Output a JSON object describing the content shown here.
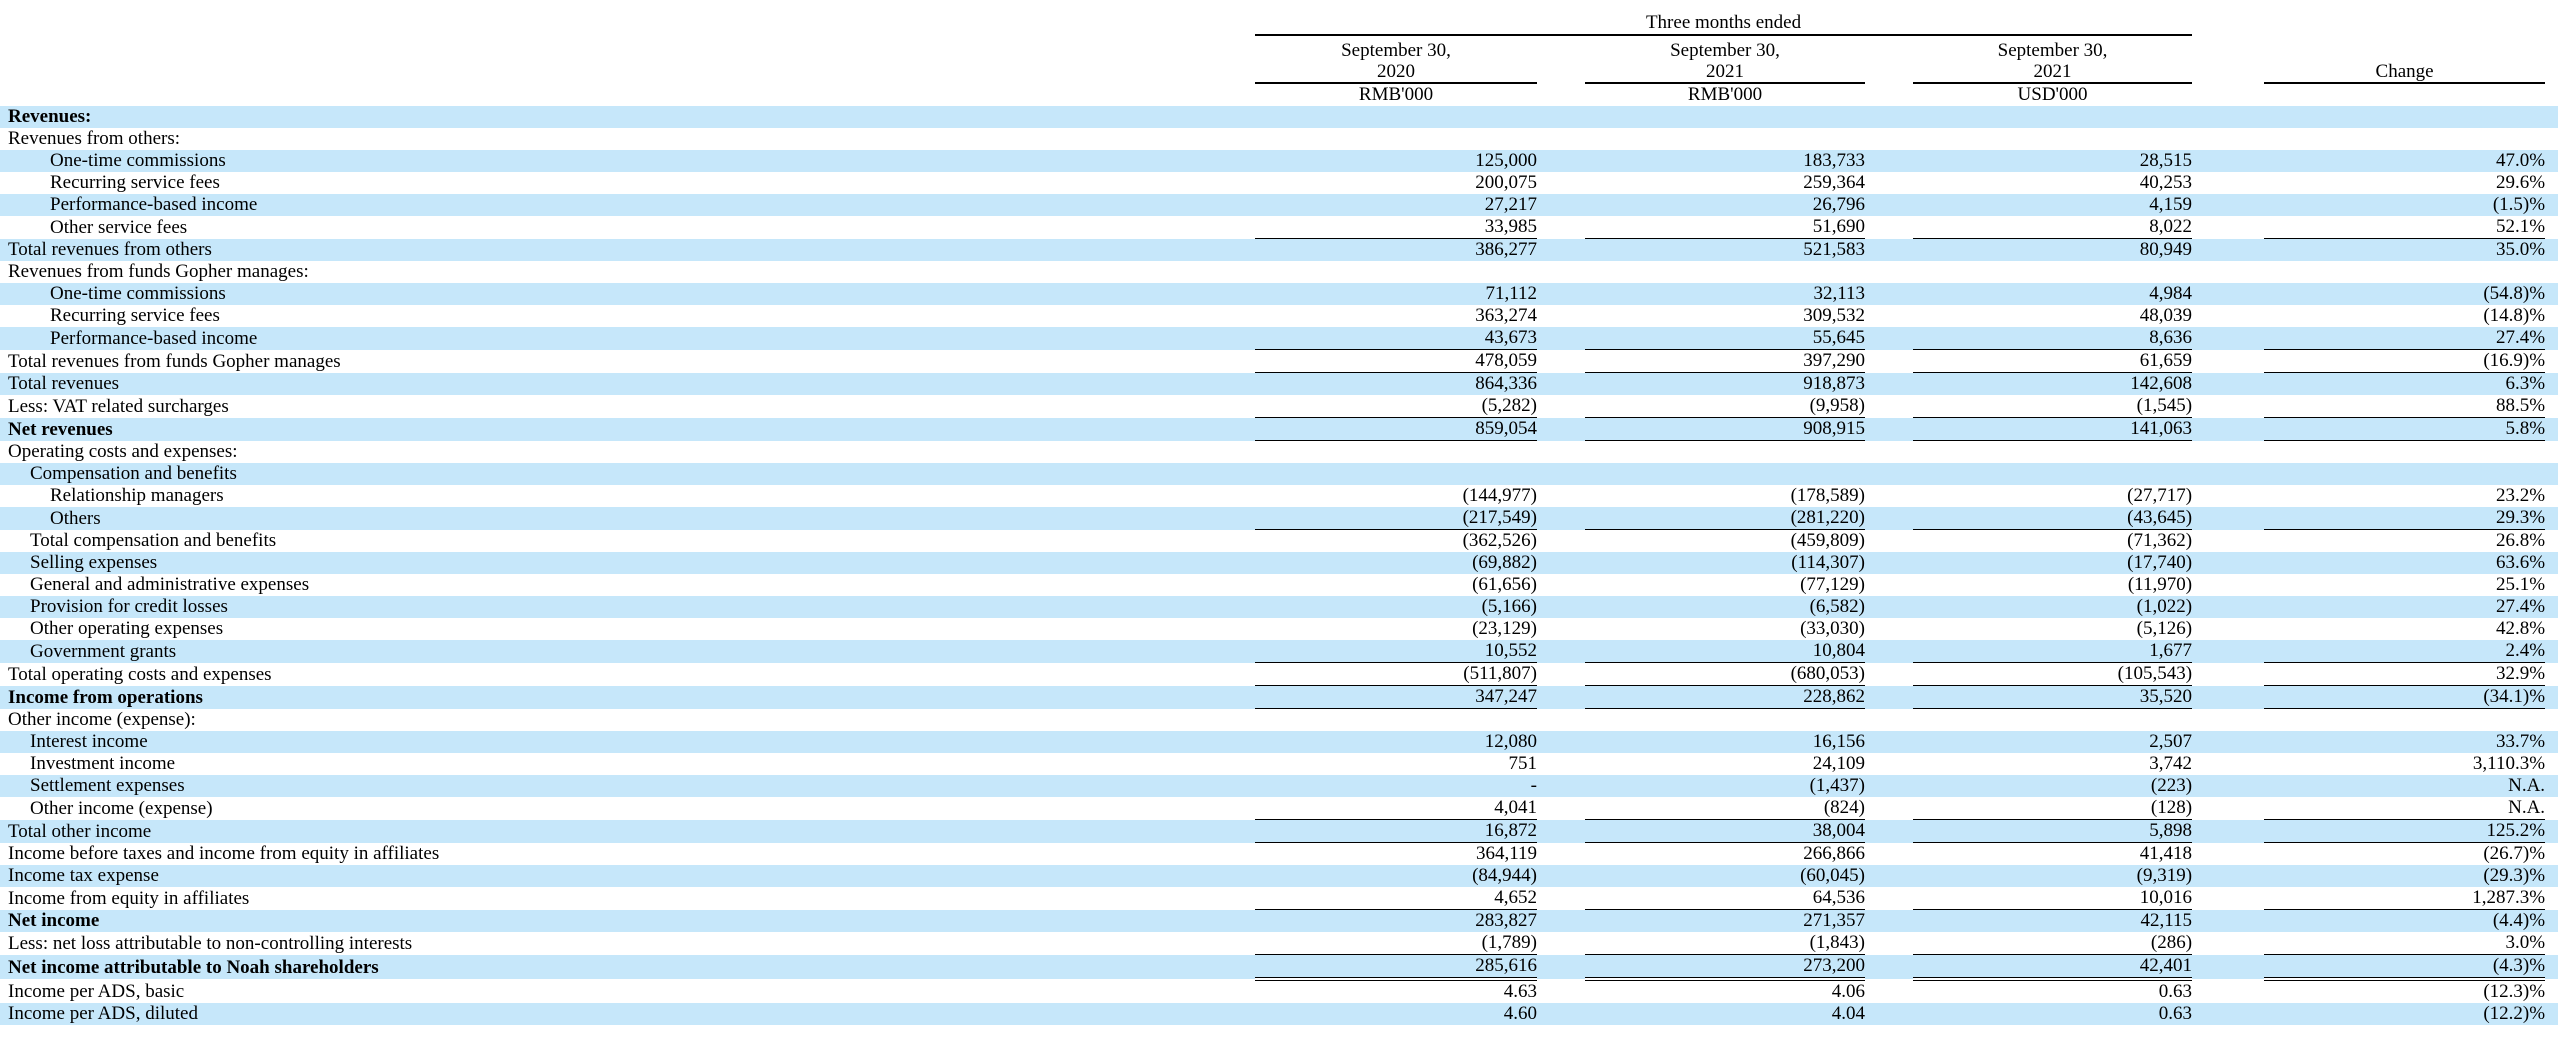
{
  "title": "Condensed consolidated income statement table",
  "colors": {
    "stripe_blue": "#c6e7fa",
    "text": "#000000",
    "rule_line": "#000000"
  },
  "header": {
    "group_title": "Three months ended",
    "periods": [
      {
        "date_line1": "September 30,",
        "date_line2": "2020",
        "unit": "RMB'000"
      },
      {
        "date_line1": "September 30,",
        "date_line2": "2021",
        "unit": "RMB'000"
      },
      {
        "date_line1": "September 30,",
        "date_line2": "2021",
        "unit": "USD'000"
      }
    ],
    "change_label": "Change"
  },
  "rows": [
    {
      "label": "Revenues:",
      "indent": 0,
      "bold": true,
      "shaded": true,
      "border": "none",
      "values": [
        "",
        "",
        "",
        ""
      ]
    },
    {
      "label": "Revenues from others:",
      "indent": 0,
      "bold": false,
      "shaded": false,
      "border": "none",
      "values": [
        "",
        "",
        "",
        ""
      ]
    },
    {
      "label": "One-time commissions",
      "indent": 2,
      "bold": false,
      "shaded": true,
      "border": "none",
      "values": [
        "125,000",
        "183,733",
        "28,515",
        "47.0%"
      ]
    },
    {
      "label": "Recurring service fees",
      "indent": 2,
      "bold": false,
      "shaded": false,
      "border": "none",
      "values": [
        "200,075",
        "259,364",
        "40,253",
        "29.6%"
      ]
    },
    {
      "label": "Performance-based income",
      "indent": 2,
      "bold": false,
      "shaded": true,
      "border": "none",
      "values": [
        "27,217",
        "26,796",
        "4,159",
        "(1.5)%"
      ]
    },
    {
      "label": "Other service fees",
      "indent": 2,
      "bold": false,
      "shaded": false,
      "border": "bottom",
      "values": [
        "33,985",
        "51,690",
        "8,022",
        "52.1%"
      ]
    },
    {
      "label": "Total revenues from others",
      "indent": 0,
      "bold": false,
      "shaded": true,
      "border": "none",
      "values": [
        "386,277",
        "521,583",
        "80,949",
        "35.0%"
      ]
    },
    {
      "label": "Revenues from funds Gopher manages:",
      "indent": 0,
      "bold": false,
      "shaded": false,
      "border": "none",
      "values": [
        "",
        "",
        "",
        ""
      ]
    },
    {
      "label": "One-time commissions",
      "indent": 2,
      "bold": false,
      "shaded": true,
      "border": "none",
      "values": [
        "71,112",
        "32,113",
        "4,984",
        "(54.8)%"
      ]
    },
    {
      "label": "Recurring service fees",
      "indent": 2,
      "bold": false,
      "shaded": false,
      "border": "none",
      "values": [
        "363,274",
        "309,532",
        "48,039",
        "(14.8)%"
      ]
    },
    {
      "label": "Performance-based income",
      "indent": 2,
      "bold": false,
      "shaded": true,
      "border": "bottom",
      "values": [
        "43,673",
        "55,645",
        "8,636",
        "27.4%"
      ]
    },
    {
      "label": "Total revenues from funds Gopher manages",
      "indent": 0,
      "bold": false,
      "shaded": false,
      "border": "bottom",
      "values": [
        "478,059",
        "397,290",
        "61,659",
        "(16.9)%"
      ]
    },
    {
      "label": "Total revenues",
      "indent": 0,
      "bold": false,
      "shaded": true,
      "border": "none",
      "values": [
        "864,336",
        "918,873",
        "142,608",
        "6.3%"
      ]
    },
    {
      "label": "Less: VAT related surcharges",
      "indent": 0,
      "bold": false,
      "shaded": false,
      "border": "bottom",
      "values": [
        "(5,282)",
        "(9,958)",
        "(1,545)",
        "88.5%"
      ]
    },
    {
      "label": "Net revenues",
      "indent": 0,
      "bold": true,
      "shaded": true,
      "border": "bottom",
      "values": [
        "859,054",
        "908,915",
        "141,063",
        "5.8%"
      ]
    },
    {
      "label": "Operating costs and expenses:",
      "indent": 0,
      "bold": false,
      "shaded": false,
      "border": "none",
      "values": [
        "",
        "",
        "",
        ""
      ]
    },
    {
      "label": "Compensation and benefits",
      "indent": 1,
      "bold": false,
      "shaded": true,
      "border": "none",
      "values": [
        "",
        "",
        "",
        ""
      ]
    },
    {
      "label": "Relationship managers",
      "indent": 2,
      "bold": false,
      "shaded": false,
      "border": "none",
      "values": [
        "(144,977)",
        "(178,589)",
        "(27,717)",
        "23.2%"
      ]
    },
    {
      "label": "Others",
      "indent": 2,
      "bold": false,
      "shaded": true,
      "border": "bottom",
      "values": [
        "(217,549)",
        "(281,220)",
        "(43,645)",
        "29.3%"
      ]
    },
    {
      "label": "Total compensation and benefits",
      "indent": 1,
      "bold": false,
      "shaded": false,
      "border": "none",
      "values": [
        "(362,526)",
        "(459,809)",
        "(71,362)",
        "26.8%"
      ]
    },
    {
      "label": "Selling expenses",
      "indent": 1,
      "bold": false,
      "shaded": true,
      "border": "none",
      "values": [
        "(69,882)",
        "(114,307)",
        "(17,740)",
        "63.6%"
      ]
    },
    {
      "label": "General and administrative expenses",
      "indent": 1,
      "bold": false,
      "shaded": false,
      "border": "none",
      "values": [
        "(61,656)",
        "(77,129)",
        "(11,970)",
        "25.1%"
      ]
    },
    {
      "label": "Provision for credit losses",
      "indent": 1,
      "bold": false,
      "shaded": true,
      "border": "none",
      "values": [
        "(5,166)",
        "(6,582)",
        "(1,022)",
        "27.4%"
      ]
    },
    {
      "label": "Other operating expenses",
      "indent": 1,
      "bold": false,
      "shaded": false,
      "border": "none",
      "values": [
        "(23,129)",
        "(33,030)",
        "(5,126)",
        "42.8%"
      ]
    },
    {
      "label": "Government grants",
      "indent": 1,
      "bold": false,
      "shaded": true,
      "border": "bottom",
      "values": [
        "10,552",
        "10,804",
        "1,677",
        "2.4%"
      ]
    },
    {
      "label": "Total operating costs and expenses",
      "indent": 0,
      "bold": false,
      "shaded": false,
      "border": "bottom",
      "values": [
        "(511,807)",
        "(680,053)",
        "(105,543)",
        "32.9%"
      ]
    },
    {
      "label": "Income from operations",
      "indent": 0,
      "bold": true,
      "shaded": true,
      "border": "bottom",
      "values": [
        "347,247",
        "228,862",
        "35,520",
        "(34.1)%"
      ]
    },
    {
      "label": "Other income (expense):",
      "indent": 0,
      "bold": false,
      "shaded": false,
      "border": "none",
      "values": [
        "",
        "",
        "",
        ""
      ]
    },
    {
      "label": "Interest income",
      "indent": 1,
      "bold": false,
      "shaded": true,
      "border": "none",
      "values": [
        "12,080",
        "16,156",
        "2,507",
        "33.7%"
      ]
    },
    {
      "label": "Investment income",
      "indent": 1,
      "bold": false,
      "shaded": false,
      "border": "none",
      "values": [
        "751",
        "24,109",
        "3,742",
        "3,110.3%"
      ]
    },
    {
      "label": "Settlement expenses",
      "indent": 1,
      "bold": false,
      "shaded": true,
      "border": "none",
      "values": [
        "-",
        "(1,437)",
        "(223)",
        "N.A."
      ]
    },
    {
      "label": "Other income (expense)",
      "indent": 1,
      "bold": false,
      "shaded": false,
      "border": "bottom",
      "values": [
        "4,041",
        "(824)",
        "(128)",
        "N.A."
      ]
    },
    {
      "label": "Total other income",
      "indent": 0,
      "bold": false,
      "shaded": true,
      "border": "bottom",
      "values": [
        "16,872",
        "38,004",
        "5,898",
        "125.2%"
      ]
    },
    {
      "label": "Income before taxes and income from equity in affiliates",
      "indent": 0,
      "bold": false,
      "shaded": false,
      "border": "none",
      "values": [
        "364,119",
        "266,866",
        "41,418",
        "(26.7)%"
      ]
    },
    {
      "label": "Income tax expense",
      "indent": 0,
      "bold": false,
      "shaded": true,
      "border": "none",
      "values": [
        "(84,944)",
        "(60,045)",
        "(9,319)",
        "(29.3)%"
      ]
    },
    {
      "label": "Income from equity in affiliates",
      "indent": 0,
      "bold": false,
      "shaded": false,
      "border": "bottom",
      "values": [
        "4,652",
        "64,536",
        "10,016",
        "1,287.3%"
      ]
    },
    {
      "label": "Net income",
      "indent": 0,
      "bold": true,
      "shaded": true,
      "border": "none",
      "values": [
        "283,827",
        "271,357",
        "42,115",
        "(4.4)%"
      ]
    },
    {
      "label": "Less: net loss attributable to non-controlling interests",
      "indent": 0,
      "bold": false,
      "shaded": false,
      "border": "bottom",
      "values": [
        "(1,789)",
        "(1,843)",
        "(286)",
        "3.0%"
      ]
    },
    {
      "label": "Net income attributable to Noah shareholders",
      "indent": 0,
      "bold": true,
      "shaded": true,
      "border": "double",
      "values": [
        "285,616",
        "273,200",
        "42,401",
        "(4.3)%"
      ]
    },
    {
      "label": "Income per ADS, basic",
      "indent": 0,
      "bold": false,
      "shaded": false,
      "border": "none",
      "values": [
        "4.63",
        "4.06",
        "0.63",
        "(12.3)%"
      ]
    },
    {
      "label": "Income per ADS, diluted",
      "indent": 0,
      "bold": false,
      "shaded": true,
      "border": "none",
      "values": [
        "4.60",
        "4.04",
        "0.63",
        "(12.2)%"
      ]
    }
  ]
}
